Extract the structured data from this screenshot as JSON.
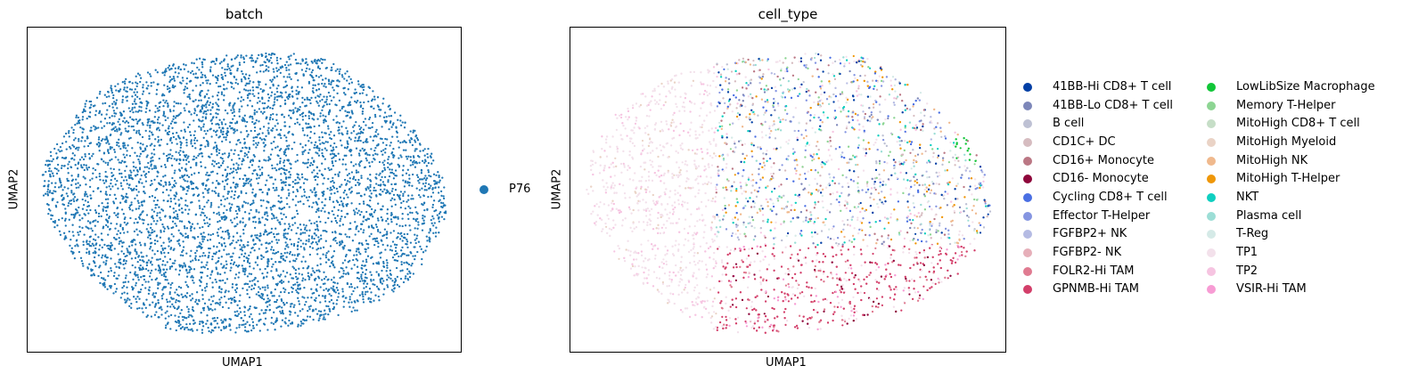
{
  "chart_data": [
    {
      "type": "scatter",
      "title": "batch",
      "xlabel": "UMAP1",
      "ylabel": "UMAP2",
      "grid": false,
      "ticks": false,
      "legend_placement": "right",
      "series": [
        {
          "name": "P76",
          "color": "#1f77b4",
          "approx_points": 6500
        }
      ]
    },
    {
      "type": "scatter",
      "title": "cell_type",
      "xlabel": "UMAP1",
      "ylabel": "UMAP2",
      "grid": false,
      "ticks": false,
      "legend_placement": "right, two columns",
      "series": [
        {
          "name": "41BB-Hi CD8+ T cell",
          "color": "#023fa5"
        },
        {
          "name": "41BB-Lo CD8+ T cell",
          "color": "#7d87b9"
        },
        {
          "name": "B cell",
          "color": "#bec1d4"
        },
        {
          "name": "CD1C+ DC",
          "color": "#d6bcc0"
        },
        {
          "name": "CD16+ Monocyte",
          "color": "#bb7784"
        },
        {
          "name": "CD16- Monocyte",
          "color": "#8e063b"
        },
        {
          "name": "Cycling CD8+ T cell",
          "color": "#4a6fe3"
        },
        {
          "name": "Effector T-Helper",
          "color": "#8595e1"
        },
        {
          "name": "FGFBP2+ NK",
          "color": "#b5bbe3"
        },
        {
          "name": "FGFBP2- NK",
          "color": "#e6afb9"
        },
        {
          "name": "FOLR2-Hi TAM",
          "color": "#e07b91"
        },
        {
          "name": "GPNMB-Hi TAM",
          "color": "#d33f6a"
        },
        {
          "name": "LowLibSize Macrophage",
          "color": "#11c638"
        },
        {
          "name": "Memory T-Helper",
          "color": "#8dd593"
        },
        {
          "name": "MitoHigh CD8+ T cell",
          "color": "#c6dec7"
        },
        {
          "name": "MitoHigh Myeloid",
          "color": "#ead3c6"
        },
        {
          "name": "MitoHigh NK",
          "color": "#f0b98d"
        },
        {
          "name": "MitoHigh T-Helper",
          "color": "#ef9708"
        },
        {
          "name": "NKT",
          "color": "#0fcfc0"
        },
        {
          "name": "Plasma cell",
          "color": "#9cded6"
        },
        {
          "name": "T-Reg",
          "color": "#d5eae7"
        },
        {
          "name": "TP1",
          "color": "#f3e1eb"
        },
        {
          "name": "TP2",
          "color": "#f6c4e1"
        },
        {
          "name": "VSIR-Hi TAM",
          "color": "#f79cd4"
        }
      ]
    }
  ]
}
